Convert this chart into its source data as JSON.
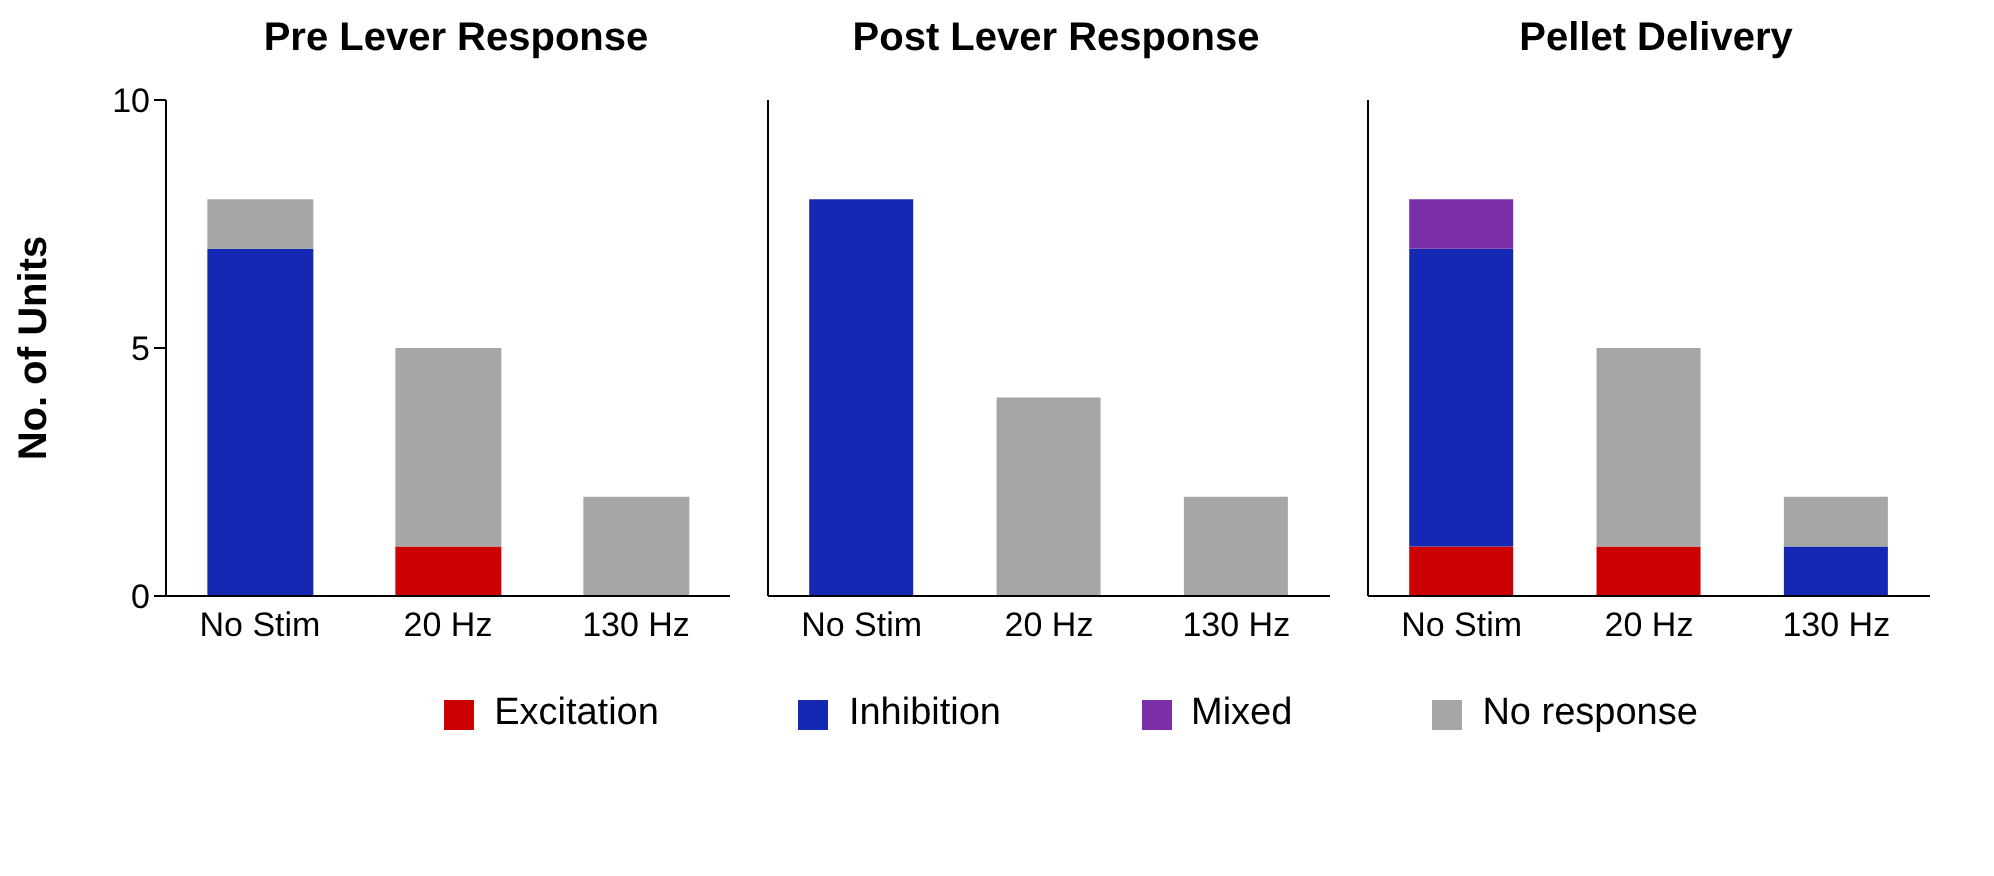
{
  "chart_data": [
    {
      "type": "bar",
      "title": "Pre Lever Response",
      "ylabel": "No. of Units",
      "categories": [
        "No Stim",
        "20 Hz",
        "130 Hz"
      ],
      "stacked": true,
      "ylim": [
        0,
        10
      ],
      "yticks": [
        0,
        5,
        10
      ],
      "grid": false,
      "legend": "bottom",
      "series": [
        {
          "name": "Excitation",
          "color": "#cc0000",
          "values": [
            0,
            1,
            0
          ]
        },
        {
          "name": "Inhibition",
          "color": "#1428b4",
          "values": [
            7,
            0,
            0
          ]
        },
        {
          "name": "Mixed",
          "color": "#7b2fa8",
          "values": [
            0,
            0,
            0
          ]
        },
        {
          "name": "No response",
          "color": "#a6a6a6",
          "values": [
            1,
            4,
            2
          ]
        }
      ]
    },
    {
      "type": "bar",
      "title": "Post Lever Response",
      "categories": [
        "No Stim",
        "20 Hz",
        "130 Hz"
      ],
      "stacked": true,
      "ylim": [
        0,
        10
      ],
      "tick_labels": "x",
      "grid": false,
      "series": [
        {
          "color": "#cc0000",
          "values": [
            0,
            0,
            0
          ]
        },
        {
          "color": "#1428b4",
          "values": [
            8,
            0,
            0
          ]
        },
        {
          "color": "#7b2fa8",
          "values": [
            0,
            0,
            0
          ]
        },
        {
          "color": "#a6a6a6",
          "values": [
            0,
            4,
            2
          ]
        }
      ]
    },
    {
      "type": "bar",
      "title": "Pellet Delivery",
      "categories": [
        "No Stim",
        "20 Hz",
        "130 Hz"
      ],
      "stacked": true,
      "ylim": [
        0,
        10
      ],
      "tick_labels": "x",
      "grid": false,
      "series": [
        {
          "color": "#cc0000",
          "values": [
            1,
            1,
            0
          ]
        },
        {
          "color": "#1428b4",
          "values": [
            6,
            0,
            1
          ]
        },
        {
          "color": "#7b2fa8",
          "values": [
            1,
            0,
            0
          ]
        },
        {
          "color": "#a6a6a6",
          "values": [
            0,
            4,
            1
          ]
        }
      ]
    }
  ]
}
